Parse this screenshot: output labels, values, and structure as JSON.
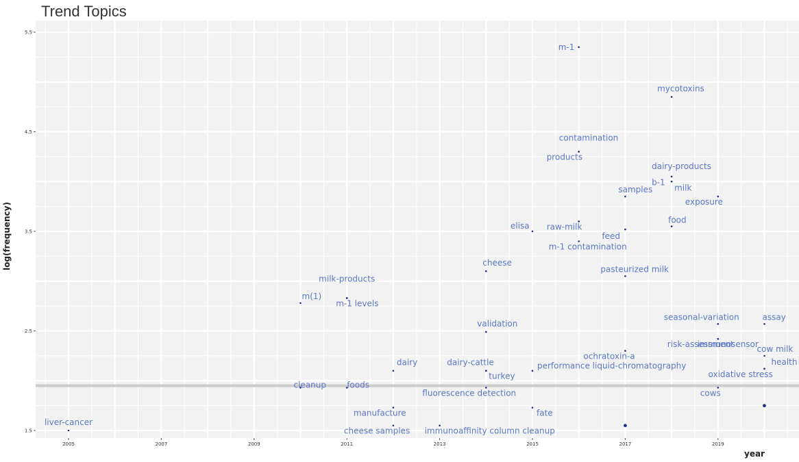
{
  "title": "Trend Topics",
  "chart_data": {
    "type": "scatter",
    "title": "Trend Topics",
    "xlabel": "year",
    "ylabel": "log(frequency)",
    "xlim": [
      2004.5,
      2020.7
    ],
    "ylim": [
      1.45,
      5.45
    ],
    "x_ticks": [
      "2005",
      "2007",
      "2009",
      "2011",
      "2013",
      "2015",
      "2017",
      "2019"
    ],
    "y_ticks": [
      "1.5",
      "2.5",
      "3.5",
      "4.5",
      "5.5"
    ],
    "reference_line_y": 1.95,
    "grid": true,
    "colors": {
      "label": "#5b77c4",
      "point": "#1a2f86",
      "panel": "#f2f2f2",
      "grid": "#ffffff",
      "refline": "#cccccc"
    },
    "points": [
      {
        "term": "liver-cancer",
        "x": 2005,
        "y": 1.5
      },
      {
        "term": "m(1)",
        "x": 2010,
        "y": 2.78
      },
      {
        "term": "cleanup",
        "x": 2010,
        "y": 1.93
      },
      {
        "term": "milk-products",
        "x": 2011,
        "y": 2.83
      },
      {
        "term": "m-1 levels",
        "x": 2011,
        "y": 2.83
      },
      {
        "term": "foods",
        "x": 2011,
        "y": 1.93
      },
      {
        "term": "dairy",
        "x": 2012,
        "y": 2.1
      },
      {
        "term": "manufacture",
        "x": 2012,
        "y": 1.73
      },
      {
        "term": "cheese samples",
        "x": 2012,
        "y": 1.55
      },
      {
        "term": "immunoaffinity column cleanup",
        "x": 2013,
        "y": 1.55
      },
      {
        "term": "cheese",
        "x": 2014,
        "y": 3.1
      },
      {
        "term": "validation",
        "x": 2014,
        "y": 2.49
      },
      {
        "term": "dairy-cattle",
        "x": 2014,
        "y": 2.1
      },
      {
        "term": "turkey",
        "x": 2014,
        "y": 2.1
      },
      {
        "term": "fluorescence detection",
        "x": 2014,
        "y": 1.93
      },
      {
        "term": "elisa",
        "x": 2015,
        "y": 3.5
      },
      {
        "term": "performance liquid-chromatography",
        "x": 2015,
        "y": 2.1
      },
      {
        "term": "fate",
        "x": 2015,
        "y": 1.73
      },
      {
        "term": "m-1",
        "x": 2016,
        "y": 5.35
      },
      {
        "term": "contamination",
        "x": 2016,
        "y": 4.3
      },
      {
        "term": "products",
        "x": 2016,
        "y": 4.3
      },
      {
        "term": "raw-milk",
        "x": 2016,
        "y": 3.6
      },
      {
        "term": "m-1 contamination",
        "x": 2016,
        "y": 3.4
      },
      {
        "term": "samples",
        "x": 2017,
        "y": 3.85
      },
      {
        "term": "feed",
        "x": 2017,
        "y": 3.52
      },
      {
        "term": "pasteurized milk",
        "x": 2017,
        "y": 3.05
      },
      {
        "term": "ochratoxin-a",
        "x": 2017,
        "y": 2.3
      },
      {
        "term": "",
        "x": 2017,
        "y": 1.55
      },
      {
        "term": "mycotoxins",
        "x": 2018,
        "y": 4.85
      },
      {
        "term": "dairy-products",
        "x": 2018,
        "y": 4.05
      },
      {
        "term": "b-1",
        "x": 2018,
        "y": 4.0
      },
      {
        "term": "milk",
        "x": 2018,
        "y": 4.0
      },
      {
        "term": "food",
        "x": 2018,
        "y": 3.55
      },
      {
        "term": "exposure",
        "x": 2019,
        "y": 3.85
      },
      {
        "term": "seasonal-variation",
        "x": 2019,
        "y": 2.57
      },
      {
        "term": "immunosensor",
        "x": 2019,
        "y": 2.42
      },
      {
        "term": "risk-assessment",
        "x": 2019,
        "y": 2.42
      },
      {
        "term": "cows",
        "x": 2019,
        "y": 1.93
      },
      {
        "term": "assay",
        "x": 2020,
        "y": 2.57
      },
      {
        "term": "cow milk",
        "x": 2020,
        "y": 2.25
      },
      {
        "term": "health",
        "x": 2020,
        "y": 2.12
      },
      {
        "term": "oxidative stress",
        "x": 2020,
        "y": 2.12
      },
      {
        "term": "",
        "x": 2020,
        "y": 1.75
      }
    ]
  }
}
